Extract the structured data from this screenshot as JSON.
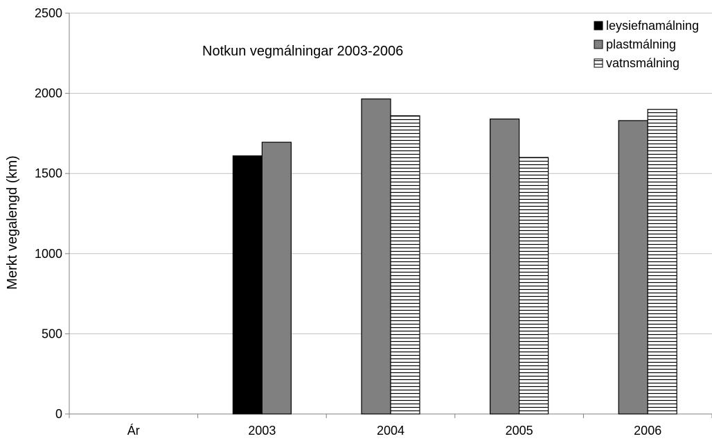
{
  "chart_data": {
    "type": "bar",
    "title": "Notkun vegmálningar 2003-2006",
    "xlabel": "",
    "ylabel": "Merkt vegalengd (km)",
    "categories": [
      "Ár",
      "2003",
      "2004",
      "2005",
      "2006"
    ],
    "ylim": [
      0,
      2500
    ],
    "yticks": [
      0,
      500,
      1000,
      1500,
      2000,
      2500
    ],
    "grid": true,
    "legend_position": "top-right",
    "series": [
      {
        "name": "leysiefnamálning",
        "values": [
          null,
          1610,
          null,
          null,
          null
        ],
        "pattern": "solid-black"
      },
      {
        "name": "plastmálning",
        "values": [
          null,
          1695,
          1965,
          1840,
          1830
        ],
        "pattern": "solid-gray"
      },
      {
        "name": "vatnsmálning",
        "values": [
          null,
          null,
          1860,
          1600,
          1900
        ],
        "pattern": "horizontal-lines"
      }
    ],
    "colors": {
      "leysiefnamálning": "#000000",
      "plastmálning": "#808080",
      "vatnsmálning": "#ffffff",
      "grid": "#c0c0c0",
      "axis": "#808080"
    }
  }
}
